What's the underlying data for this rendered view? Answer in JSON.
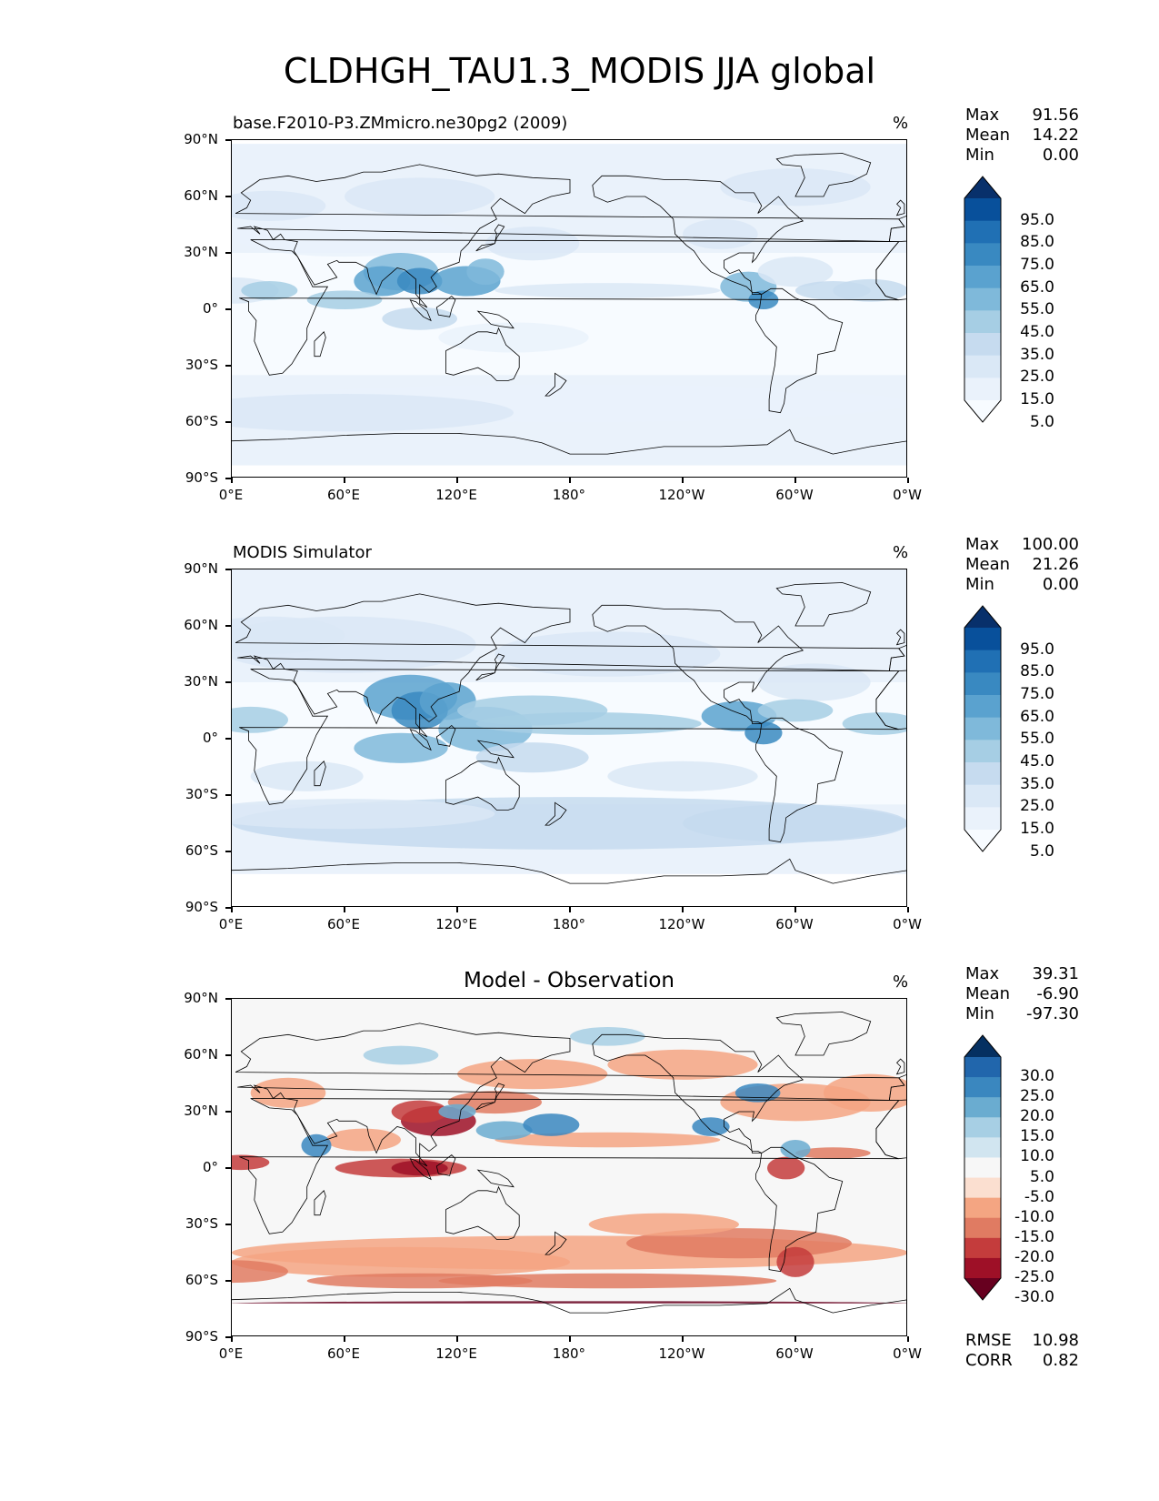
{
  "title": "CLDHGH_TAU1.3_MODIS JJA global",
  "units": "%",
  "lat_ticks": [
    "90°N",
    "60°N",
    "30°N",
    "0°",
    "30°S",
    "60°S",
    "90°S"
  ],
  "lon_ticks": [
    "0°E",
    "60°E",
    "120°E",
    "180°",
    "120°W",
    "60°W",
    "0°W"
  ],
  "panels": [
    {
      "title": "base.F2010-P3.ZMmicro.ne30pg2 (2009)",
      "title_position": "left",
      "stats": {
        "max_label": "Max",
        "max": "91.56",
        "mean_label": "Mean",
        "mean": "14.22",
        "min_label": "Min",
        "min": "0.00"
      },
      "colorbar_levels": [
        "95.0",
        "85.0",
        "75.0",
        "65.0",
        "55.0",
        "45.0",
        "35.0",
        "25.0",
        "15.0",
        "5.0"
      ],
      "colorbar_colors": [
        "#08306b",
        "#08509b",
        "#2070b4",
        "#3989c1",
        "#5aa2cf",
        "#7fb9da",
        "#a6cee4",
        "#c6dbef",
        "#dae8f6",
        "#eaf2fb",
        "#f7fbff"
      ]
    },
    {
      "title": "MODIS Simulator",
      "title_position": "left",
      "stats": {
        "max_label": "Max",
        "max": "100.00",
        "mean_label": "Mean",
        "mean": "21.26",
        "min_label": "Min",
        "min": "0.00"
      },
      "colorbar_levels": [
        "95.0",
        "85.0",
        "75.0",
        "65.0",
        "55.0",
        "45.0",
        "35.0",
        "25.0",
        "15.0",
        "5.0"
      ],
      "colorbar_colors": [
        "#08306b",
        "#08509b",
        "#2070b4",
        "#3989c1",
        "#5aa2cf",
        "#7fb9da",
        "#a6cee4",
        "#c6dbef",
        "#dae8f6",
        "#eaf2fb",
        "#f7fbff"
      ]
    },
    {
      "title": "Model - Observation",
      "title_position": "center",
      "stats": {
        "max_label": "Max",
        "max": "39.31",
        "mean_label": "Mean",
        "mean": "-6.90",
        "min_label": "Min",
        "min": "-97.30"
      },
      "colorbar_levels": [
        "30.0",
        "25.0",
        "20.0",
        "15.0",
        "10.0",
        "5.0",
        "-5.0",
        "-10.0",
        "-15.0",
        "-20.0",
        "-25.0",
        "-30.0"
      ],
      "colorbar_colors": [
        "#053061",
        "#2166ac",
        "#3a87bf",
        "#6aacd0",
        "#a7cfe4",
        "#d1e5f0",
        "#f7f7f7",
        "#fbdfd0",
        "#f4a582",
        "#e07b62",
        "#c43c3c",
        "#9e1027",
        "#67001f"
      ],
      "metrics": {
        "rmse_label": "RMSE",
        "rmse": "10.98",
        "corr_label": "CORR",
        "corr": "0.82"
      }
    }
  ]
}
